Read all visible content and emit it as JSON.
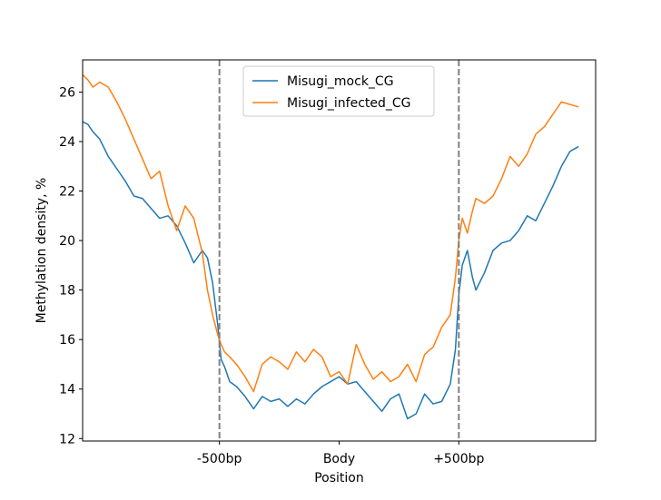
{
  "chart_data": {
    "type": "line",
    "title": "",
    "xlabel": "Position",
    "ylabel": "Methylation density, %",
    "x_ticks": [
      {
        "label": "-500bp",
        "x": 0.8
      },
      {
        "label": "Body",
        "x": 1.5
      },
      {
        "label": "+500bp",
        "x": 2.2
      }
    ],
    "x_range": [
      0,
      3
    ],
    "ylim": [
      11.9,
      27.3
    ],
    "y_ticks": [
      12,
      14,
      16,
      18,
      20,
      22,
      24,
      26
    ],
    "grid": false,
    "legend_position": "top-center",
    "boundaries": [
      0.8,
      2.2
    ],
    "series": [
      {
        "name": "Misugi_mock_CG",
        "color": "#1f77b4",
        "x": [
          0,
          0.03,
          0.06,
          0.1,
          0.15,
          0.2,
          0.25,
          0.3,
          0.35,
          0.4,
          0.45,
          0.5,
          0.55,
          0.6,
          0.65,
          0.7,
          0.73,
          0.76,
          0.79,
          0.81,
          0.83,
          0.86,
          0.9,
          0.95,
          1.0,
          1.05,
          1.1,
          1.15,
          1.2,
          1.25,
          1.3,
          1.35,
          1.4,
          1.45,
          1.5,
          1.55,
          1.6,
          1.65,
          1.7,
          1.75,
          1.8,
          1.85,
          1.9,
          1.95,
          2.0,
          2.05,
          2.1,
          2.15,
          2.18,
          2.2,
          2.22,
          2.25,
          2.28,
          2.3,
          2.35,
          2.4,
          2.45,
          2.5,
          2.55,
          2.6,
          2.65,
          2.7,
          2.75,
          2.8,
          2.85,
          2.9
        ],
        "y": [
          24.8,
          24.7,
          24.4,
          24.1,
          23.4,
          22.9,
          22.4,
          21.8,
          21.7,
          21.3,
          20.9,
          21.0,
          20.6,
          19.9,
          19.1,
          19.6,
          19.3,
          18.3,
          16.6,
          15.2,
          14.9,
          14.3,
          14.1,
          13.7,
          13.2,
          13.7,
          13.5,
          13.6,
          13.3,
          13.6,
          13.4,
          13.8,
          14.1,
          14.3,
          14.5,
          14.2,
          14.3,
          13.9,
          13.5,
          13.1,
          13.6,
          13.8,
          12.8,
          13.0,
          13.8,
          13.4,
          13.5,
          14.2,
          15.6,
          17.8,
          19.0,
          19.6,
          18.5,
          18.0,
          18.7,
          19.6,
          19.9,
          20.0,
          20.4,
          21.0,
          20.8,
          21.5,
          22.2,
          23.0,
          23.6,
          23.8
        ]
      },
      {
        "name": "Misugi_infected_CG",
        "color": "#ff7f0e",
        "x": [
          0,
          0.03,
          0.06,
          0.1,
          0.15,
          0.2,
          0.25,
          0.3,
          0.35,
          0.4,
          0.45,
          0.5,
          0.55,
          0.6,
          0.65,
          0.7,
          0.73,
          0.76,
          0.79,
          0.81,
          0.83,
          0.86,
          0.9,
          0.95,
          1.0,
          1.05,
          1.1,
          1.15,
          1.2,
          1.25,
          1.3,
          1.35,
          1.4,
          1.45,
          1.5,
          1.55,
          1.6,
          1.65,
          1.7,
          1.75,
          1.8,
          1.85,
          1.9,
          1.95,
          2.0,
          2.05,
          2.1,
          2.15,
          2.18,
          2.2,
          2.22,
          2.25,
          2.28,
          2.3,
          2.35,
          2.4,
          2.45,
          2.5,
          2.55,
          2.6,
          2.65,
          2.7,
          2.75,
          2.8,
          2.85,
          2.9
        ],
        "y": [
          26.7,
          26.5,
          26.2,
          26.4,
          26.2,
          25.6,
          24.9,
          24.1,
          23.3,
          22.5,
          22.8,
          21.4,
          20.4,
          21.4,
          20.9,
          19.5,
          18.0,
          17.0,
          16.2,
          15.8,
          15.5,
          15.3,
          15.0,
          14.5,
          13.9,
          15.0,
          15.3,
          15.1,
          14.8,
          15.5,
          15.1,
          15.6,
          15.3,
          14.5,
          14.7,
          14.2,
          15.8,
          15.0,
          14.4,
          14.7,
          14.3,
          14.5,
          15.0,
          14.3,
          15.4,
          15.7,
          16.5,
          17.0,
          18.5,
          20.0,
          20.9,
          20.3,
          21.2,
          21.7,
          21.5,
          21.8,
          22.5,
          23.4,
          23.0,
          23.5,
          24.3,
          24.6,
          25.1,
          25.6,
          25.5,
          25.4
        ]
      }
    ]
  }
}
